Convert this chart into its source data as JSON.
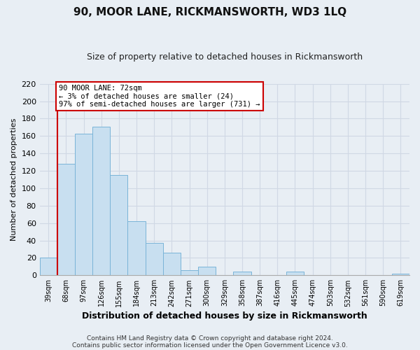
{
  "title": "90, MOOR LANE, RICKMANSWORTH, WD3 1LQ",
  "subtitle": "Size of property relative to detached houses in Rickmansworth",
  "xlabel": "Distribution of detached houses by size in Rickmansworth",
  "ylabel": "Number of detached properties",
  "footer_line1": "Contains HM Land Registry data © Crown copyright and database right 2024.",
  "footer_line2": "Contains public sector information licensed under the Open Government Licence v3.0.",
  "bin_labels": [
    "39sqm",
    "68sqm",
    "97sqm",
    "126sqm",
    "155sqm",
    "184sqm",
    "213sqm",
    "242sqm",
    "271sqm",
    "300sqm",
    "329sqm",
    "358sqm",
    "387sqm",
    "416sqm",
    "445sqm",
    "474sqm",
    "503sqm",
    "532sqm",
    "561sqm",
    "590sqm",
    "619sqm"
  ],
  "bar_values": [
    20,
    128,
    163,
    171,
    115,
    62,
    37,
    26,
    6,
    10,
    0,
    4,
    0,
    0,
    4,
    0,
    0,
    0,
    0,
    0,
    2
  ],
  "bar_color": "#c8dff0",
  "bar_edge_color": "#7ab4d8",
  "annotation_line1": "90 MOOR LANE: 72sqm",
  "annotation_line2": "← 3% of detached houses are smaller (24)",
  "annotation_line3": "97% of semi-detached houses are larger (731) →",
  "annotation_box_color": "#ffffff",
  "annotation_box_edge_color": "#cc0000",
  "property_line_color": "#cc0000",
  "ylim": [
    0,
    220
  ],
  "yticks": [
    0,
    20,
    40,
    60,
    80,
    100,
    120,
    140,
    160,
    180,
    200,
    220
  ],
  "grid_color": "#d0d8e4",
  "background_color": "#e8eef4",
  "title_fontsize": 11,
  "subtitle_fontsize": 9,
  "ylabel_fontsize": 8,
  "xlabel_fontsize": 9,
  "footer_fontsize": 6.5
}
